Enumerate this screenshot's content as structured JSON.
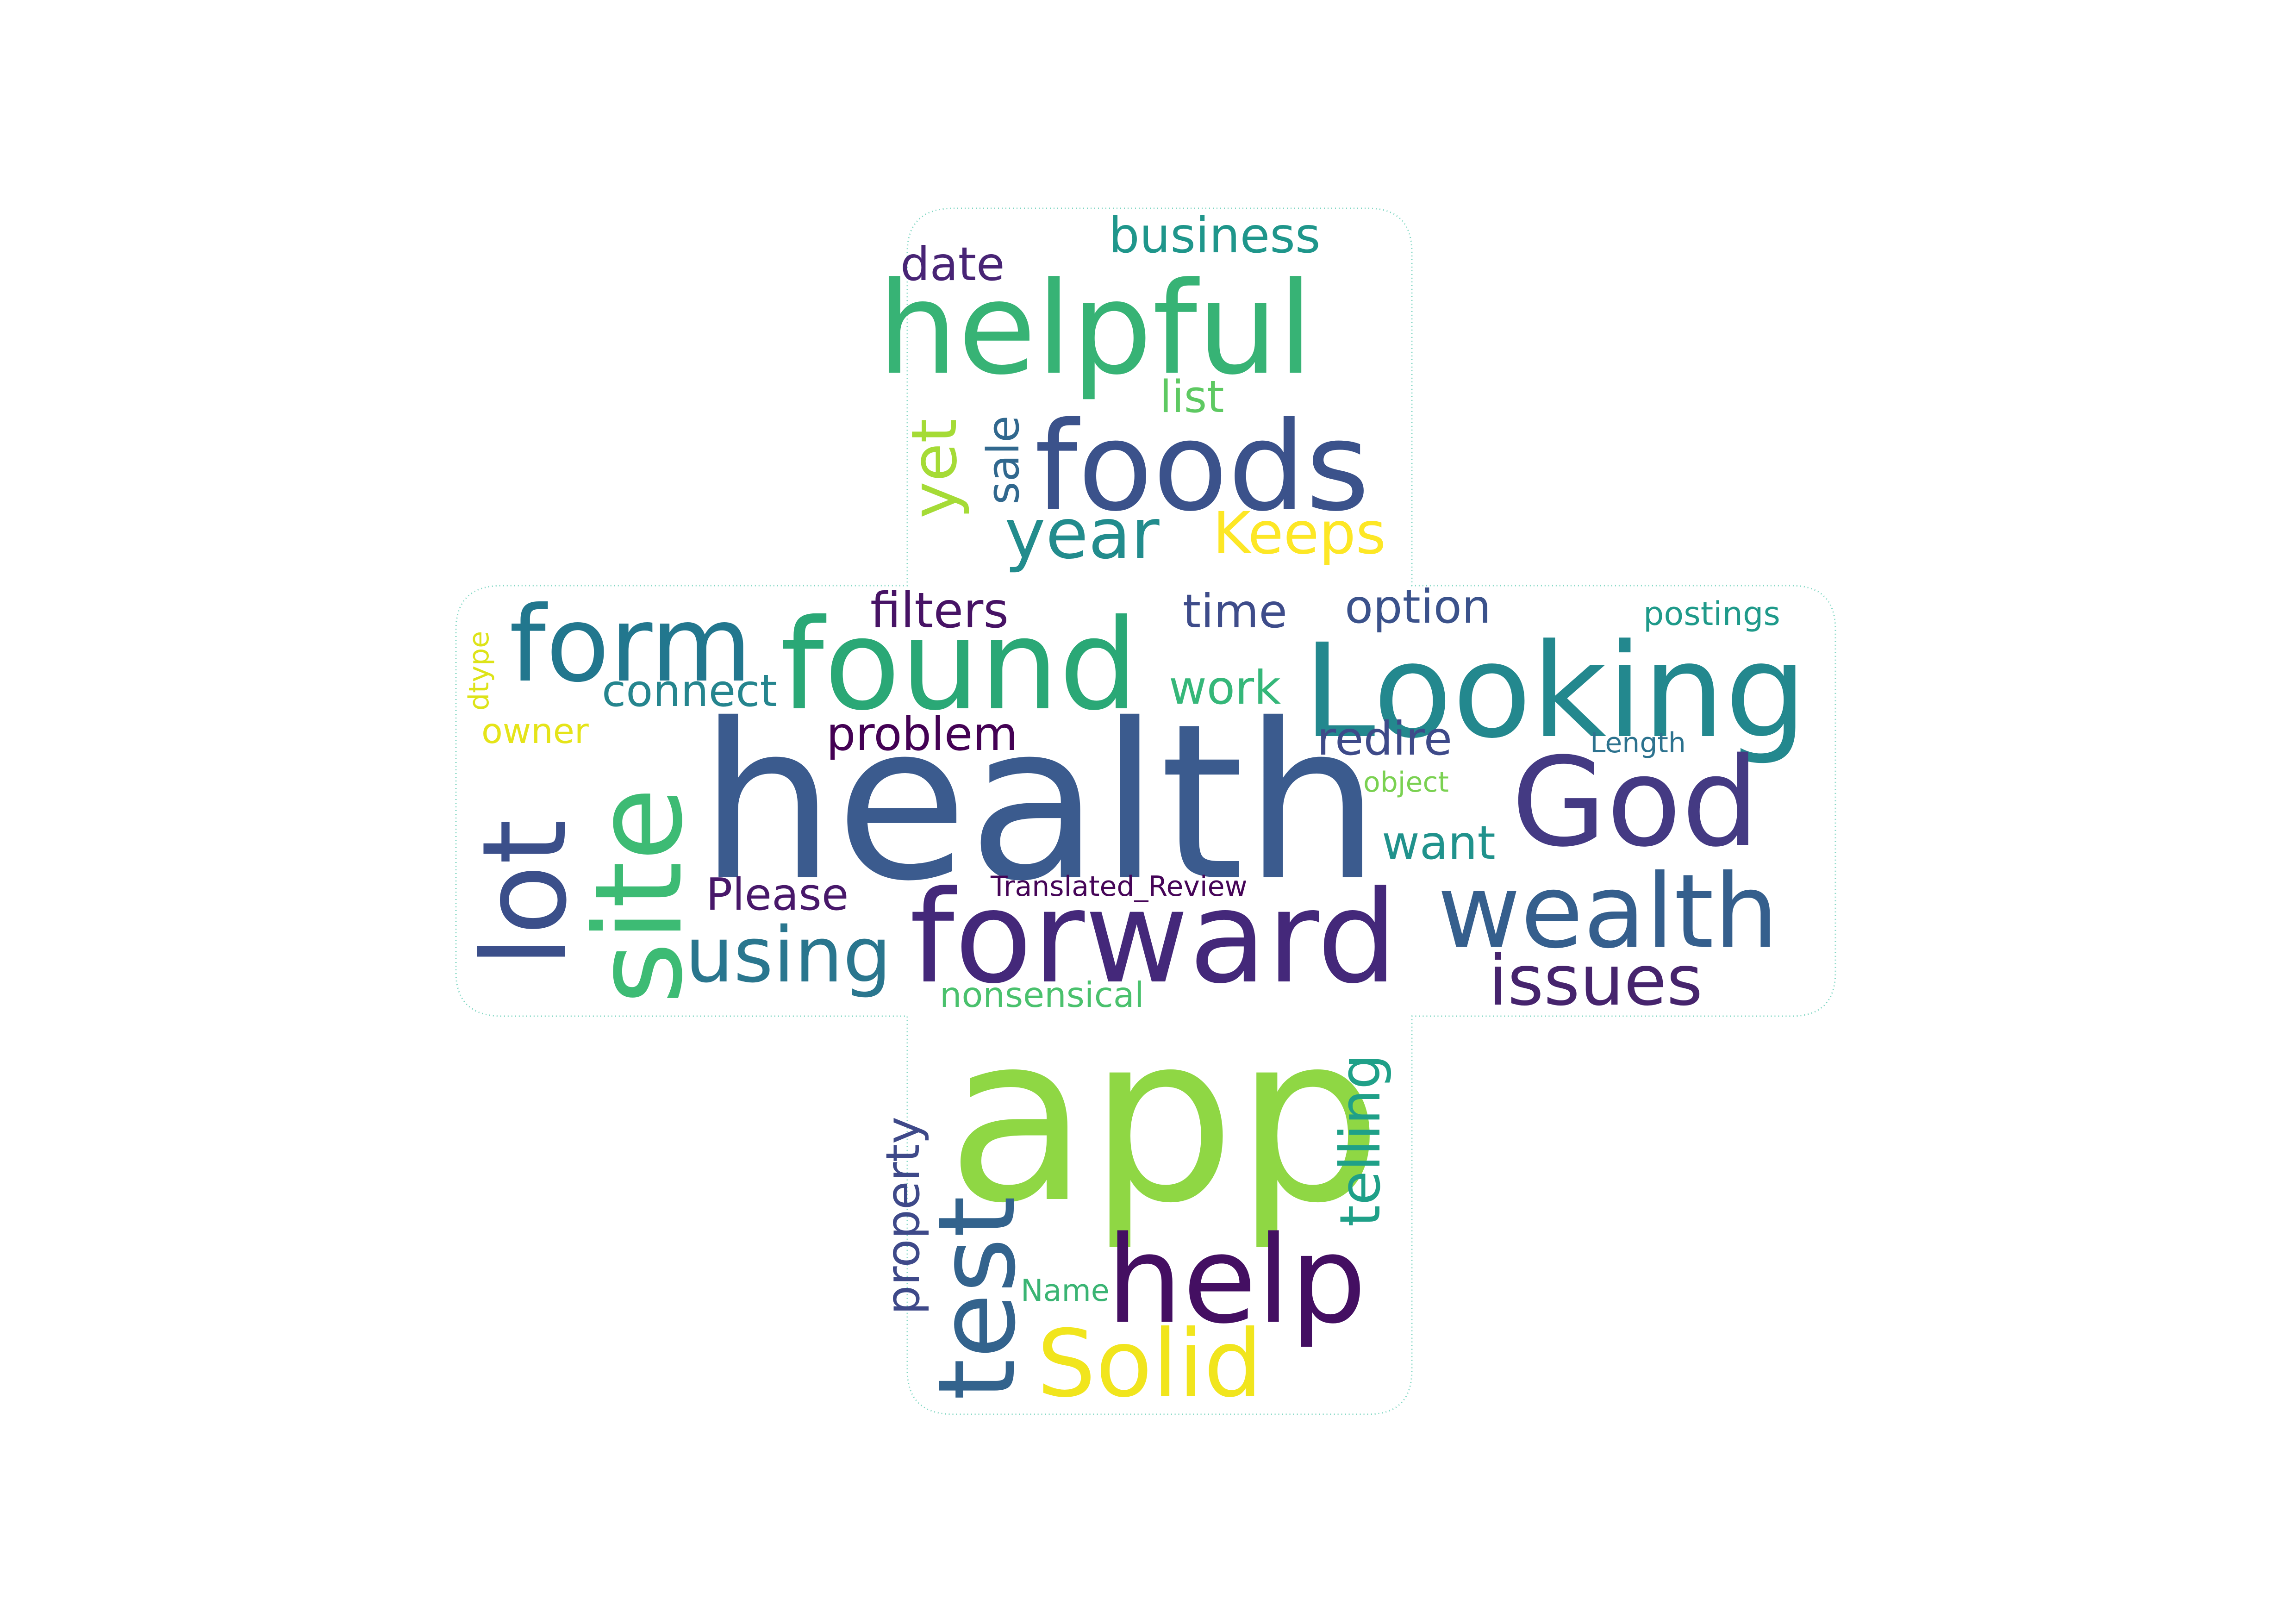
{
  "words": [
    {
      "text": "app",
      "color": "#8fd744"
    },
    {
      "text": "health",
      "color": "#3b5b8e"
    },
    {
      "text": "forward",
      "color": "#44287a"
    },
    {
      "text": "Looking",
      "color": "#23888e"
    },
    {
      "text": "found",
      "color": "#2aa876"
    },
    {
      "text": "helpful",
      "color": "#37b375"
    },
    {
      "text": "foods",
      "color": "#3b528b"
    },
    {
      "text": "help",
      "color": "#440f62"
    },
    {
      "text": "site",
      "color": "#3dbb74"
    },
    {
      "text": "lot",
      "color": "#3b4f8a"
    },
    {
      "text": "form",
      "color": "#22778e"
    },
    {
      "text": "God",
      "color": "#443a83"
    },
    {
      "text": "wealth",
      "color": "#355f8d"
    },
    {
      "text": "test",
      "color": "#33638d"
    },
    {
      "text": "Solid",
      "color": "#f1e51d"
    },
    {
      "text": "using",
      "color": "#2a768e"
    },
    {
      "text": "issues",
      "color": "#46246d"
    },
    {
      "text": "year",
      "color": "#228c8d"
    },
    {
      "text": "yet",
      "color": "#a5db36"
    },
    {
      "text": "Keeps",
      "color": "#fde725"
    },
    {
      "text": "telling",
      "color": "#1fa088"
    },
    {
      "text": "filters",
      "color": "#471365"
    },
    {
      "text": "problem",
      "color": "#440154"
    },
    {
      "text": "option",
      "color": "#3b528b"
    },
    {
      "text": "time",
      "color": "#3e4c8a"
    },
    {
      "text": "work",
      "color": "#35b779"
    },
    {
      "text": "redire",
      "color": "#3e4a89"
    },
    {
      "text": "want",
      "color": "#20928c"
    },
    {
      "text": "connect",
      "color": "#25858e"
    },
    {
      "text": "Please",
      "color": "#48186a"
    },
    {
      "text": "business",
      "color": "#1f968b"
    },
    {
      "text": "date",
      "color": "#482475"
    },
    {
      "text": "list",
      "color": "#5ec962"
    },
    {
      "text": "sale",
      "color": "#31688e"
    },
    {
      "text": "property",
      "color": "#3e4989"
    },
    {
      "text": "nonsensical",
      "color": "#4ac16d"
    },
    {
      "text": "postings",
      "color": "#1f9a8a"
    },
    {
      "text": "Length",
      "color": "#2c728e"
    },
    {
      "text": "object",
      "color": "#7ad151"
    },
    {
      "text": "owner",
      "color": "#e5e419"
    },
    {
      "text": "dtype",
      "color": "#dde318"
    },
    {
      "text": "Name",
      "color": "#3ab473"
    },
    {
      "text": "Translated_Review",
      "color": "#450457"
    }
  ]
}
